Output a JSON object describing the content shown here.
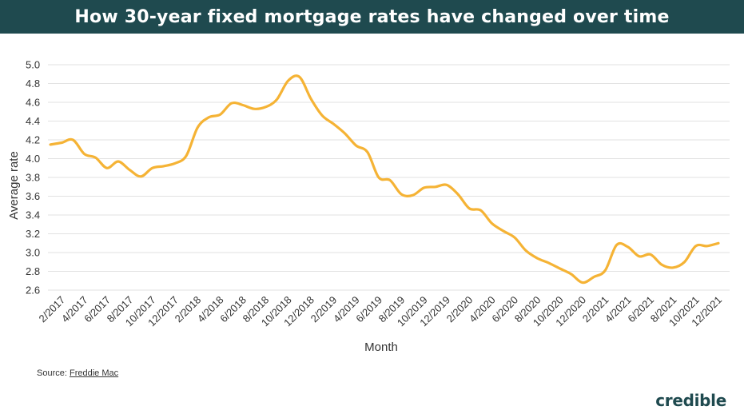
{
  "header": {
    "title": "How 30-year fixed mortgage rates have changed over time"
  },
  "source": {
    "prefix": "Source:",
    "link_text": "Freddie Mac"
  },
  "logo": {
    "text": "credible"
  },
  "colors": {
    "header_bg": "#1f4a4f",
    "line": "#f5b335",
    "grid": "#e2e2e2"
  },
  "chart_data": {
    "type": "line",
    "title": "How 30-year fixed mortgage rates have changed over time",
    "xlabel": "Month",
    "ylabel": "Average rate",
    "ylim": [
      2.6,
      5.0
    ],
    "yticks": [
      "2.6",
      "2.8",
      "3.0",
      "3.2",
      "3.4",
      "3.6",
      "3.8",
      "4.0",
      "4.2",
      "4.4",
      "4.6",
      "4.8",
      "5.0"
    ],
    "xtick_labels": [
      "2/2017",
      "4/2017",
      "6/2017",
      "8/2017",
      "10/2017",
      "12/2017",
      "2/2018",
      "4/2018",
      "6/2018",
      "8/2018",
      "10/2018",
      "12/2018",
      "2/2019",
      "4/2019",
      "6/2019",
      "8/2019",
      "10/2019",
      "12/2019",
      "2/2020",
      "4/2020",
      "6/2020",
      "8/2020",
      "10/2020",
      "12/2020",
      "2/2021",
      "4/2021",
      "6/2021",
      "8/2021",
      "10/2021",
      "12/2021"
    ],
    "grid": true,
    "legend": "none",
    "series": [
      {
        "x": [
          "1/2017",
          "2/2017",
          "3/2017",
          "4/2017",
          "5/2017",
          "6/2017",
          "7/2017",
          "8/2017",
          "9/2017",
          "10/2017",
          "11/2017",
          "12/2017",
          "1/2018",
          "2/2018",
          "3/2018",
          "4/2018",
          "5/2018",
          "6/2018",
          "7/2018",
          "8/2018",
          "9/2018",
          "10/2018",
          "11/2018",
          "12/2018",
          "1/2019",
          "2/2019",
          "3/2019",
          "4/2019",
          "5/2019",
          "6/2019",
          "7/2019",
          "8/2019",
          "9/2019",
          "10/2019",
          "11/2019",
          "12/2019",
          "1/2020",
          "2/2020",
          "3/2020",
          "4/2020",
          "5/2020",
          "6/2020",
          "7/2020",
          "8/2020",
          "9/2020",
          "10/2020",
          "11/2020",
          "12/2020",
          "1/2021",
          "2/2021",
          "3/2021",
          "4/2021",
          "5/2021",
          "6/2021",
          "7/2021",
          "8/2021",
          "9/2021",
          "10/2021",
          "11/2021",
          "12/2021"
        ],
        "values": [
          4.15,
          4.17,
          4.2,
          4.05,
          4.01,
          3.9,
          3.97,
          3.88,
          3.81,
          3.9,
          3.92,
          3.95,
          4.03,
          4.33,
          4.44,
          4.47,
          4.59,
          4.57,
          4.53,
          4.55,
          4.63,
          4.83,
          4.87,
          4.64,
          4.46,
          4.37,
          4.27,
          4.14,
          4.07,
          3.8,
          3.77,
          3.62,
          3.61,
          3.69,
          3.7,
          3.72,
          3.62,
          3.47,
          3.45,
          3.31,
          3.23,
          3.16,
          3.02,
          2.94,
          2.89,
          2.83,
          2.77,
          2.68,
          2.74,
          2.81,
          3.08,
          3.06,
          2.96,
          2.98,
          2.87,
          2.84,
          2.9,
          3.07,
          3.07,
          3.1
        ]
      }
    ]
  }
}
